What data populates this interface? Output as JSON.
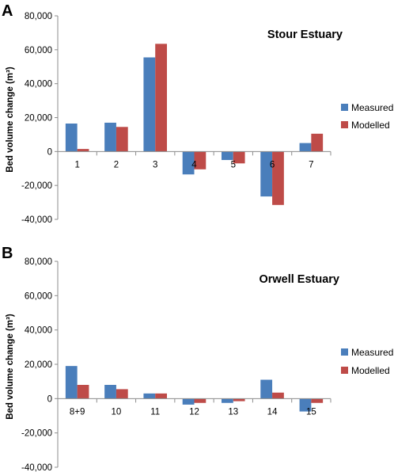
{
  "chart_data": [
    {
      "type": "bar",
      "panel_label": "A",
      "title": "Stour Estuary",
      "ylabel": "Bed volume change (m³)",
      "xlabel": "",
      "ylim": [
        -40000,
        80000
      ],
      "yticks": [
        -40000,
        -20000,
        0,
        20000,
        40000,
        60000,
        80000
      ],
      "ytick_labels": [
        "-40,000",
        "-20,000",
        "0",
        "20,000",
        "40,000",
        "60,000",
        "80,000"
      ],
      "grid": false,
      "legend_position": "right",
      "categories": [
        "1",
        "2",
        "3",
        "4",
        "5",
        "6",
        "7"
      ],
      "series": [
        {
          "name": "Measured",
          "color": "#4a7ebb",
          "values": [
            16500,
            17000,
            55500,
            -13500,
            -5000,
            -26500,
            5000
          ]
        },
        {
          "name": "Modelled",
          "color": "#be4b48",
          "values": [
            1500,
            14500,
            63500,
            -10500,
            -7000,
            -31500,
            10500
          ]
        }
      ]
    },
    {
      "type": "bar",
      "panel_label": "B",
      "title": "Orwell Estuary",
      "ylabel": "Bed volume change (m³)",
      "xlabel": "",
      "ylim": [
        -40000,
        80000
      ],
      "yticks": [
        -40000,
        -20000,
        0,
        20000,
        40000,
        60000,
        80000
      ],
      "ytick_labels": [
        "-40,000",
        "-20,000",
        "0",
        "20,000",
        "40,000",
        "60,000",
        "80,000"
      ],
      "grid": false,
      "legend_position": "right",
      "categories": [
        "8+9",
        "10",
        "11",
        "12",
        "13",
        "14",
        "15"
      ],
      "series": [
        {
          "name": "Measured",
          "color": "#4a7ebb",
          "values": [
            19000,
            8000,
            3000,
            -3500,
            -2500,
            11000,
            -7500
          ]
        },
        {
          "name": "Modelled",
          "color": "#be4b48",
          "values": [
            8000,
            5500,
            3000,
            -2500,
            -1500,
            3500,
            -2500
          ]
        }
      ]
    }
  ]
}
